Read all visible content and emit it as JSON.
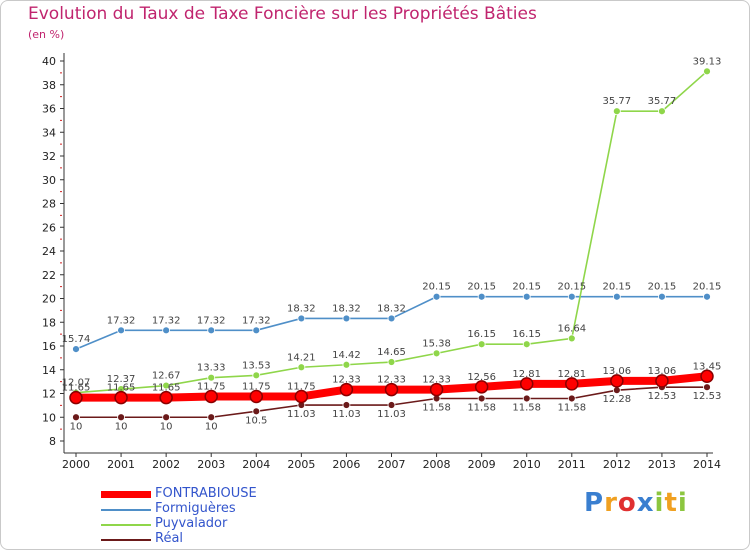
{
  "chart_data": {
    "type": "line",
    "title": "Evolution du Taux de Taxe Foncière sur les Propriétés Bâties",
    "subtitle": "(en %)",
    "xlabel": "",
    "ylabel": "",
    "categories": [
      "2000",
      "2001",
      "2002",
      "2003",
      "2004",
      "2005",
      "2006",
      "2007",
      "2008",
      "2009",
      "2010",
      "2011",
      "2012",
      "2013",
      "2014"
    ],
    "ylim": [
      8,
      40
    ],
    "ytick_step": 2,
    "grid": false,
    "series": [
      {
        "name": "FONTRABIOUSE",
        "color": "#ff0000",
        "values": [
          11.65,
          11.65,
          11.65,
          11.75,
          11.75,
          11.75,
          12.33,
          12.33,
          12.33,
          12.56,
          12.81,
          12.81,
          13.06,
          13.06,
          13.45
        ],
        "labels": [
          "11.65",
          "11.65",
          "11.65",
          "11.75",
          "11.75",
          "11.75",
          "12.33",
          "12.33",
          "12.33",
          "12.56",
          "12.81",
          "12.81",
          "13.06",
          "13.06",
          "13.45"
        ]
      },
      {
        "name": "Formiguères",
        "color": "#4f8fc8",
        "values": [
          15.74,
          17.32,
          17.32,
          17.32,
          17.32,
          18.32,
          18.32,
          18.32,
          20.15,
          20.15,
          20.15,
          20.15,
          20.15,
          20.15,
          20.15
        ],
        "labels": [
          "15.74",
          "17.32",
          "17.32",
          "17.32",
          "17.32",
          "18.32",
          "18.32",
          "18.32",
          "20.15",
          "20.15",
          "20.15",
          "20.15",
          "20.15",
          "20.15",
          "20.15"
        ]
      },
      {
        "name": "Puyvalador",
        "color": "#8fd64a",
        "values": [
          12.07,
          12.37,
          12.67,
          13.33,
          13.53,
          14.21,
          14.42,
          14.65,
          15.38,
          16.15,
          16.15,
          16.64,
          35.77,
          35.77,
          39.13
        ],
        "labels": [
          "12.07",
          "12.37",
          "12.67",
          "13.33",
          "13.53",
          "14.21",
          "14.42",
          "14.65",
          "15.38",
          "16.15",
          "16.15",
          "16.64",
          "35.77",
          "35.77",
          "39.13"
        ]
      },
      {
        "name": "Réal",
        "color": "#6b1a1a",
        "values": [
          10,
          10,
          10,
          10,
          10.5,
          11.03,
          11.03,
          11.03,
          11.58,
          11.58,
          11.58,
          11.58,
          12.28,
          12.53,
          12.53
        ],
        "labels": [
          "10",
          "10",
          "10",
          "10",
          "10.5",
          "11.03",
          "11.03",
          "11.03",
          "11.58",
          "11.58",
          "11.58",
          "11.58",
          "12.28",
          "12.53",
          "12.53"
        ]
      }
    ]
  },
  "legend": [
    {
      "label": "FONTRABIOUSE",
      "color": "#ff0000",
      "text_color": "#3355cc"
    },
    {
      "label": "Formiguères",
      "color": "#4f8fc8",
      "text_color": "#3355cc"
    },
    {
      "label": "Puyvalador",
      "color": "#8fd64a",
      "text_color": "#3355cc"
    },
    {
      "label": "Réal",
      "color": "#6b1a1a",
      "text_color": "#3355cc"
    }
  ],
  "logo": {
    "text": "Proxiti",
    "letter_colors": [
      "#3a7fd0",
      "#f0a020",
      "#e03030",
      "#3a7fd0",
      "#8cc63f",
      "#f0a020",
      "#8cc63f"
    ]
  }
}
